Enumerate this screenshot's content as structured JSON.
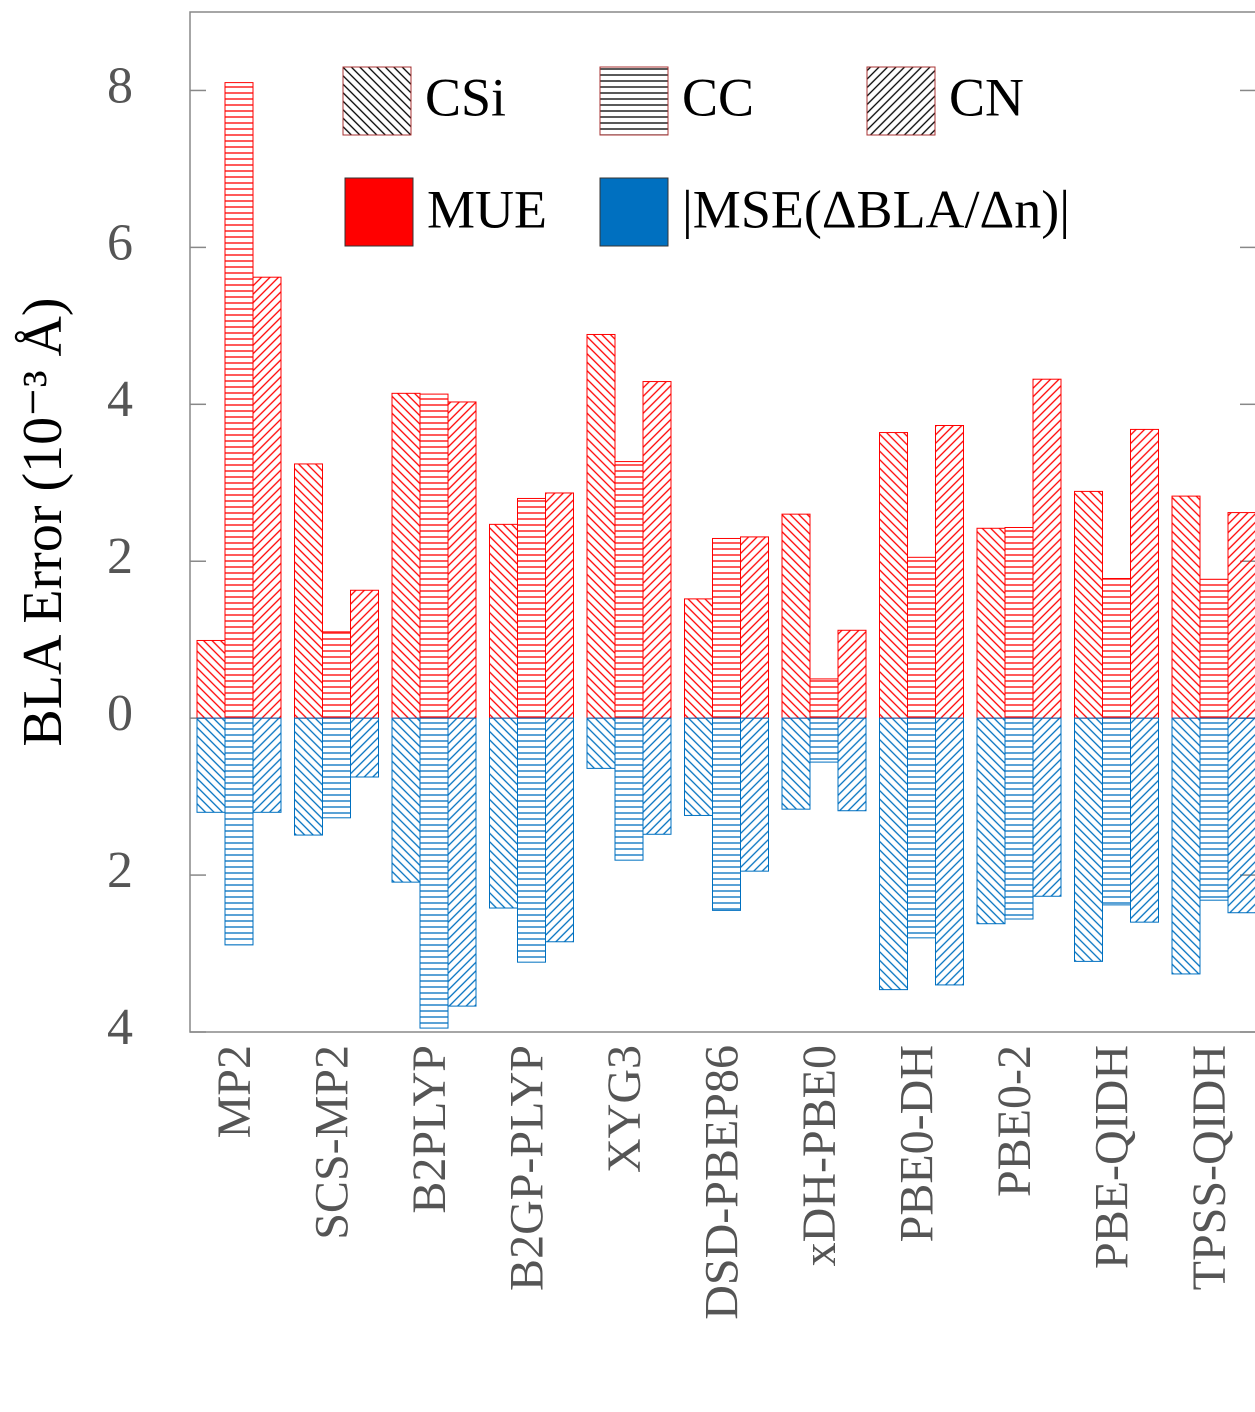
{
  "chart_data": {
    "type": "bar",
    "y_label": "BLA Error  (10⁻³ Å)",
    "categories": [
      "MP2",
      "SCS-MP2",
      "B2PLYP",
      "B2GP-PLYP",
      "XYG3",
      "DSD-PBEP86",
      "xDH-PBE0",
      "PBE0-DH",
      "PBE0-2",
      "PBE-QIDH",
      "TPSS-QIDH"
    ],
    "measures": [
      {
        "name": "MUE",
        "color": "#ff0000"
      },
      {
        "name": "|MSE(ΔBLA/Δn)|",
        "color": "#0070c0"
      }
    ],
    "series": [
      {
        "name": "CSi",
        "pattern": "diagonal-down",
        "values": [
          0.99,
          3.24,
          4.14,
          2.47,
          4.89,
          1.52,
          2.6,
          3.64,
          2.42,
          2.89,
          2.83
        ],
        "mse_values": [
          -1.2,
          -1.49,
          -2.09,
          -2.42,
          -0.64,
          -1.24,
          -1.16,
          -3.46,
          -2.62,
          -3.1,
          -3.26
        ]
      },
      {
        "name": "CC",
        "pattern": "horizontal",
        "values": [
          8.1,
          1.1,
          4.13,
          2.8,
          3.27,
          2.29,
          0.5,
          2.05,
          2.43,
          1.78,
          1.77
        ],
        "mse_values": [
          -2.89,
          -1.27,
          -3.95,
          -3.11,
          -1.81,
          -2.45,
          -0.56,
          -2.8,
          -2.56,
          -2.38,
          -2.32
        ]
      },
      {
        "name": "CN",
        "pattern": "diagonal-up",
        "values": [
          5.62,
          1.63,
          4.03,
          2.87,
          4.29,
          2.31,
          1.12,
          3.73,
          4.32,
          3.68,
          2.62
        ],
        "mse_values": [
          -1.2,
          -0.75,
          -3.67,
          -2.85,
          -1.48,
          -1.95,
          -1.18,
          -3.4,
          -2.27,
          -2.6,
          -2.48
        ]
      }
    ],
    "ylim": [
      -4,
      9
    ],
    "yticks": [
      {
        "value": -4,
        "label": "4"
      },
      {
        "value": -2,
        "label": "2"
      },
      0,
      2,
      4,
      6,
      8
    ]
  }
}
